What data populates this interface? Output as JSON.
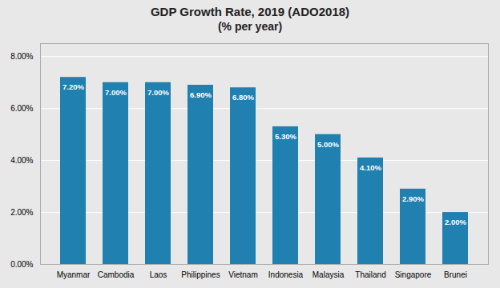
{
  "chart_data": {
    "type": "bar",
    "title": "GDP Growth Rate, 2019 (ADO2018)",
    "subtitle": "(% per year)",
    "categories": [
      "Myanmar",
      "Cambodia",
      "Laos",
      "Philippines",
      "Vietnam",
      "Indonesia",
      "Malaysia",
      "Thailand",
      "Singapore",
      "Brunei"
    ],
    "values": [
      7.2,
      7.0,
      7.0,
      6.9,
      6.8,
      5.3,
      5.0,
      4.1,
      2.9,
      2.0
    ],
    "value_labels": [
      "7.20%",
      "7.00%",
      "7.00%",
      "6.90%",
      "6.80%",
      "5.30%",
      "5.00%",
      "4.10%",
      "2.90%",
      "2.00%"
    ],
    "data_labels": true,
    "color": "#2080b0",
    "ylim": [
      0,
      8.5
    ],
    "yticks": [
      {
        "value": 0,
        "label": "0.00%"
      },
      {
        "value": 2,
        "label": "2.00%"
      },
      {
        "value": 4,
        "label": "4.00%"
      },
      {
        "value": 6,
        "label": "6.00%"
      },
      {
        "value": 8,
        "label": "8.00%"
      }
    ],
    "grid": true
  }
}
